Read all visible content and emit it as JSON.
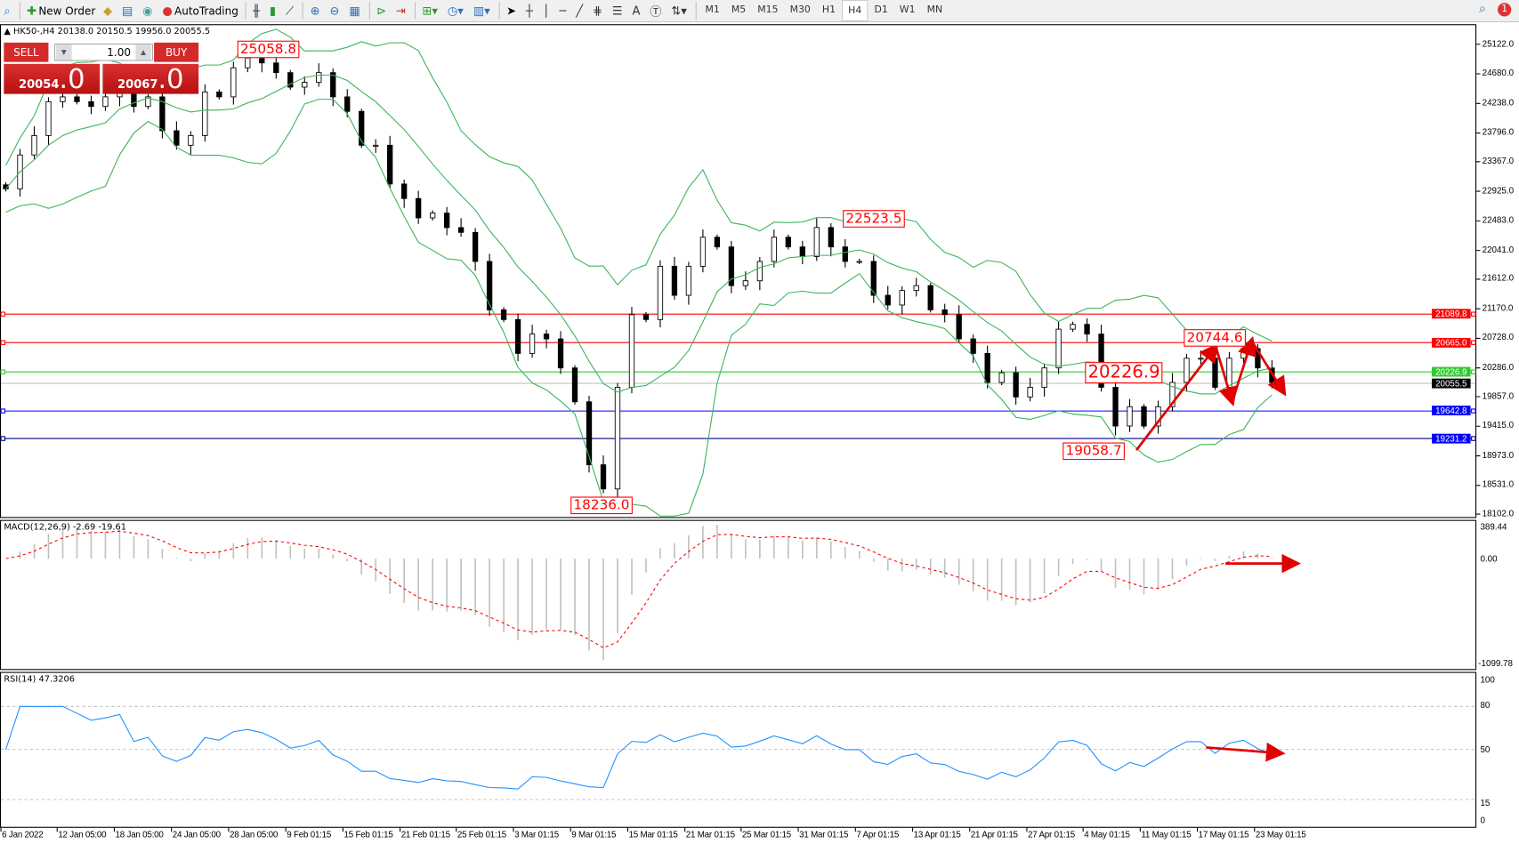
{
  "toolbar": {
    "items": [
      {
        "label": "New Order",
        "icon": "new-order-icon"
      },
      {
        "label": "AutoTrading",
        "icon": "autotrading-icon"
      }
    ],
    "timeframes": [
      "M1",
      "M5",
      "M15",
      "M30",
      "H1",
      "H4",
      "D1",
      "W1",
      "MN"
    ],
    "active_timeframe": "H4",
    "notifications": "1"
  },
  "chart": {
    "symbol_info": "HK50-,H4  20138.0 20150.5 19956.0 20055.5",
    "trade_panel": {
      "sell": "SELL",
      "buy": "BUY",
      "lot": "1.00",
      "bid_main": "20054",
      "bid_frac": ".0",
      "ask_main": "20067",
      "ask_frac": ".0"
    },
    "price_axis": [
      "25122.0",
      "24680.0",
      "24238.0",
      "23796.0",
      "23367.0",
      "22925.0",
      "22483.0",
      "22041.0",
      "21612.0",
      "21170.0",
      "20728.0",
      "20286.0",
      "19857.0",
      "19415.0",
      "18973.0",
      "18531.0",
      "18102.0"
    ],
    "levels": [
      {
        "price": 21089.8,
        "label": "21089.8",
        "color": "#ff0000"
      },
      {
        "price": 20665.0,
        "label": "20665.0",
        "color": "#ff0000"
      },
      {
        "price": 20226.9,
        "label": "20226.9",
        "color": "#32c832"
      },
      {
        "price": 20055.5,
        "label": "20055.5",
        "color": "#000000"
      },
      {
        "price": 19642.8,
        "label": "19642.8",
        "color": "#0000ff"
      },
      {
        "price": 19231.2,
        "label": "19231.2",
        "color": "#0000ff"
      }
    ],
    "annotations": [
      "25058.8",
      "22523.5",
      "18236.0",
      "20744.6",
      "20226.9",
      "19058.7"
    ],
    "time_axis": [
      "6 Jan 2022",
      "12 Jan 05:00",
      "18 Jan 05:00",
      "24 Jan 05:00",
      "28 Jan 05:00",
      "9 Feb 01:15",
      "15 Feb 01:15",
      "21 Feb 01:15",
      "25 Feb 01:15",
      "3 Mar 01:15",
      "9 Mar 01:15",
      "15 Mar 01:15",
      "21 Mar 01:15",
      "25 Mar 01:15",
      "31 Mar 01:15",
      "7 Apr 01:15",
      "13 Apr 01:15",
      "21 Apr 01:15",
      "27 Apr 01:15",
      "4 May 01:15",
      "11 May 01:15",
      "17 May 01:15",
      "23 May 01:15"
    ]
  },
  "macd": {
    "label": "MACD(12,26,9) -2.69 -19.61",
    "axis": [
      "389.44",
      "0.00",
      "-1099.78"
    ]
  },
  "rsi": {
    "label": "RSI(14) 47.3206",
    "axis": [
      "100",
      "80",
      "50",
      "15",
      "0"
    ]
  },
  "chart_data": {
    "type": "candlestick",
    "closes": [
      22962,
      23468,
      23758,
      24264,
      24336,
      24264,
      24192,
      24336,
      24626,
      24192,
      24336,
      23830,
      23613,
      23758,
      24409,
      24336,
      24770,
      24915,
      24843,
      24698,
      24481,
      24553,
      24698,
      24336,
      24119,
      23613,
      23613,
      23034,
      22817,
      22528,
      22600,
      22383,
      22311,
      21877,
      21154,
      21009,
      20503,
      20792,
      20720,
      20286,
      19780,
      18839,
      18478,
      19997,
      21082,
      21009,
      21805,
      21371,
      21805,
      22239,
      22094,
      21516,
      21588,
      21877,
      22239,
      22094,
      21950,
      22384,
      22094,
      21877,
      21877,
      21371,
      21226,
      21443,
      21516,
      21154,
      21082,
      20720,
      20503,
      20069,
      20214,
      19852,
      19997,
      20286,
      20865,
      20937,
      20792,
      19997,
      19418,
      19707,
      19418,
      19707,
      20069,
      20431,
      20431,
      19997,
      20431,
      20575,
      20286,
      20069
    ],
    "ylim": [
      18102,
      25122
    ],
    "colors": {
      "bands": "#3cb45a",
      "macd_hist": "#c0c0c0",
      "macd_signal": "#ff0000",
      "rsi": "#1e90ff",
      "arrows": "#e00000"
    }
  }
}
